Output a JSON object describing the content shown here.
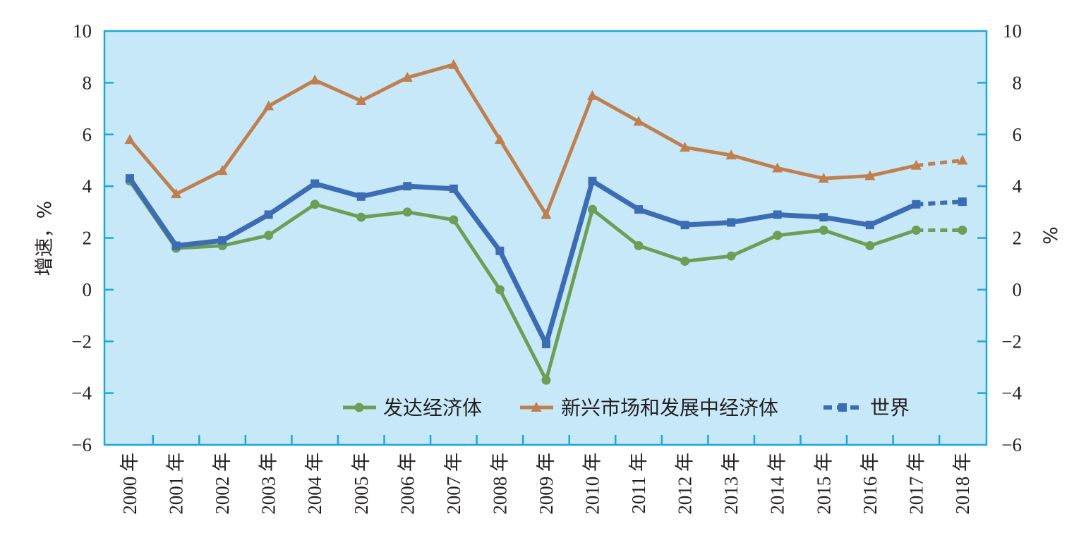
{
  "chart_data": {
    "type": "line",
    "title": "",
    "xlabel": "",
    "ylabel_left": "增速，%",
    "ylabel_right": "%",
    "ylim": [
      -6,
      10
    ],
    "yticks": [
      "10",
      "8",
      "6",
      "4",
      "2",
      "0",
      "−2",
      "−4",
      "−6"
    ],
    "yticks_right": [
      "10",
      "8",
      "6",
      "4",
      "2",
      "0",
      "−2",
      "−4",
      "−6"
    ],
    "categories": [
      "2000 年",
      "2001 年",
      "2002 年",
      "2003 年",
      "2004 年",
      "2005 年",
      "2006 年",
      "2007 年",
      "2008 年",
      "2009 年",
      "2010 年",
      "2011 年",
      "2012 年",
      "2013 年",
      "2014 年",
      "2015 年",
      "2016 年",
      "2017 年",
      "2018 年"
    ],
    "grid": false,
    "legend_position": "bottom-center",
    "projection_from_index": 17,
    "colors": {
      "plot_bg": "#c7e8f8",
      "plot_border": "#1aa7de",
      "advanced": "#6c9e56",
      "emerging": "#c07f4f",
      "world": "#3c6cb3"
    },
    "series": [
      {
        "name": "发达经济体",
        "marker": "circle",
        "color": "#6c9e56",
        "values": [
          4.2,
          1.6,
          1.7,
          2.1,
          3.3,
          2.8,
          3.0,
          2.7,
          0.0,
          -3.5,
          3.1,
          1.7,
          1.1,
          1.3,
          2.1,
          2.3,
          1.7,
          2.3,
          2.3
        ]
      },
      {
        "name": "新兴市场和发展中经济体",
        "marker": "triangle",
        "color": "#c07f4f",
        "values": [
          5.8,
          3.7,
          4.6,
          7.1,
          8.1,
          7.3,
          8.2,
          8.7,
          5.8,
          2.9,
          7.5,
          6.5,
          5.5,
          5.2,
          4.7,
          4.3,
          4.4,
          4.8,
          5.0
        ]
      },
      {
        "name": "世界",
        "marker": "square",
        "color": "#3c6cb3",
        "values": [
          4.3,
          1.7,
          1.9,
          2.9,
          4.1,
          3.6,
          4.0,
          3.9,
          1.5,
          -2.1,
          4.2,
          3.1,
          2.5,
          2.6,
          2.9,
          2.8,
          2.5,
          3.3,
          3.4
        ]
      }
    ]
  }
}
